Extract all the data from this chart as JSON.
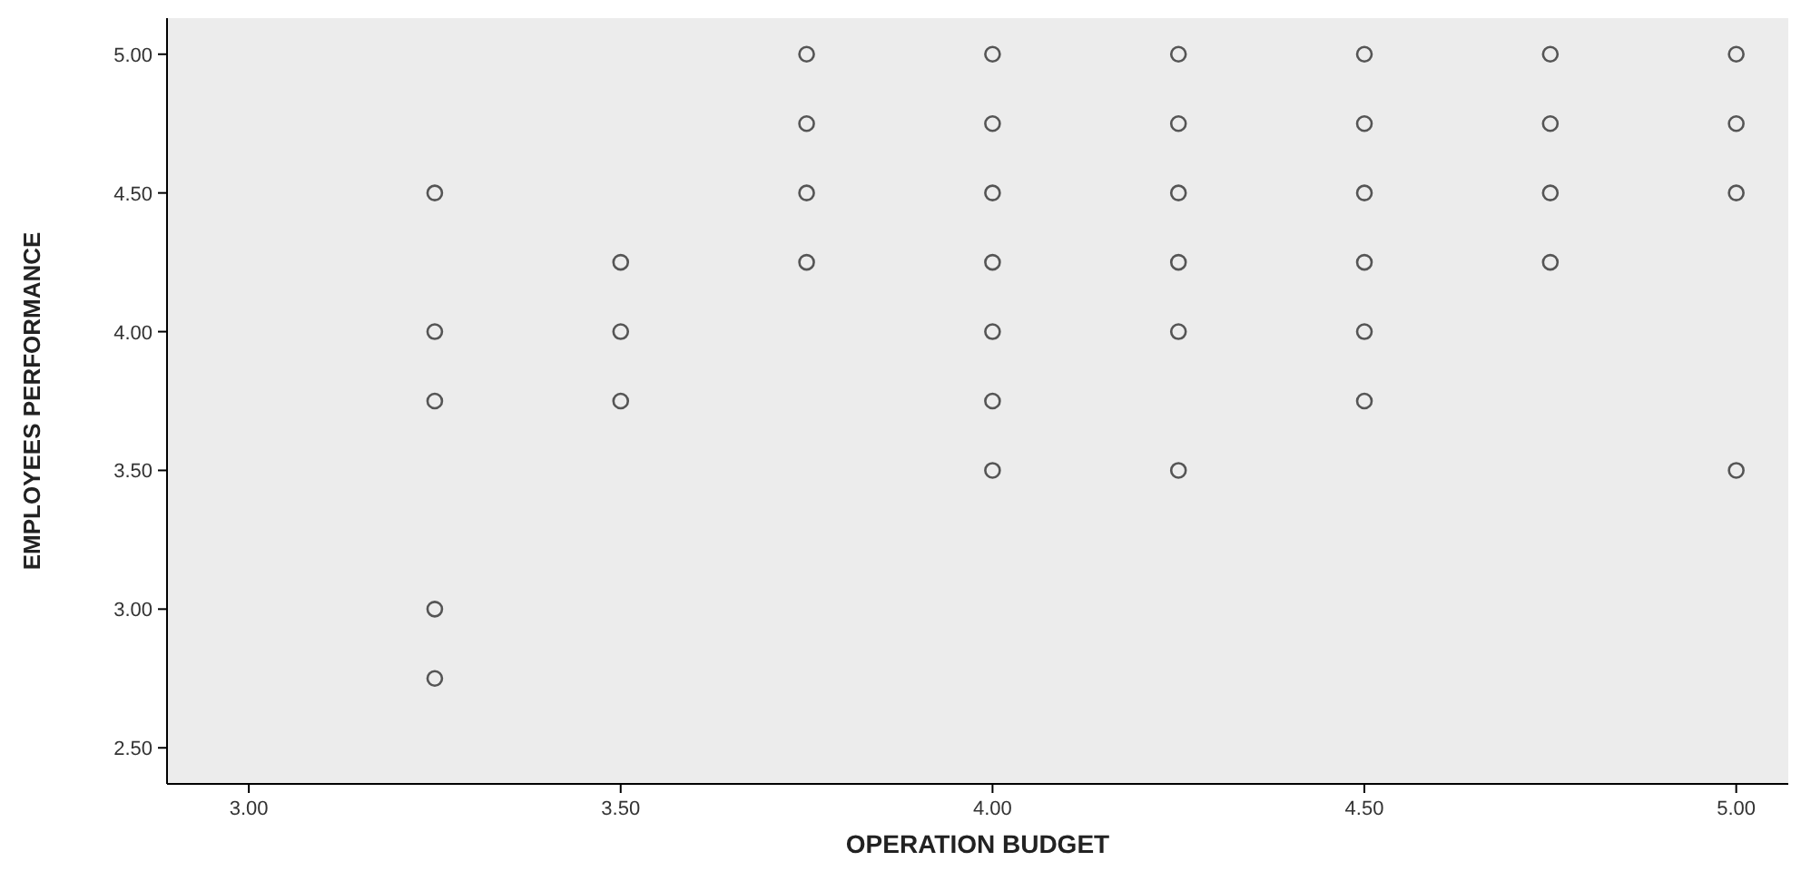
{
  "chart_data": {
    "type": "scatter",
    "xlabel": "OPERATION BUDGET",
    "ylabel": "EMPLOYEES PERFORMANCE",
    "marker": "circle",
    "grid": false,
    "xlim": [
      2.89,
      5.07
    ],
    "ylim": [
      2.37,
      5.13
    ],
    "xticks": [
      {
        "value": 3,
        "label": "3.00"
      },
      {
        "value": 3.5,
        "label": "3.50"
      },
      {
        "value": 4,
        "label": "4.00"
      },
      {
        "value": 4.5,
        "label": "4.50"
      },
      {
        "value": 5,
        "label": "5.00"
      }
    ],
    "yticks": [
      {
        "value": 2.5,
        "label": "2.50"
      },
      {
        "value": 3,
        "label": "3.00"
      },
      {
        "value": 3.5,
        "label": "3.50"
      },
      {
        "value": 4,
        "label": "4.00"
      },
      {
        "value": 4.5,
        "label": "4.50"
      },
      {
        "value": 5,
        "label": "5.00"
      }
    ],
    "series": [
      {
        "color": "#555555",
        "x": [
          3.25,
          3.25,
          3.25,
          3.25,
          3.25,
          3.5,
          3.5,
          3.5,
          3.75,
          3.75,
          3.75,
          3.75,
          4,
          4,
          4,
          4,
          4,
          4,
          4,
          4.25,
          4.25,
          4.25,
          4.25,
          4.25,
          4.25,
          4.5,
          4.5,
          4.5,
          4.5,
          4.5,
          4.5,
          4.75,
          4.75,
          4.75,
          4.75,
          5,
          5,
          5,
          5
        ],
        "values": [
          4.5,
          4,
          3.75,
          3,
          2.75,
          4.25,
          4,
          3.75,
          5,
          4.75,
          4.5,
          4.25,
          5,
          4.75,
          4.5,
          4.25,
          4,
          3.75,
          3.5,
          5,
          4.75,
          4.5,
          4.25,
          4,
          3.5,
          5,
          4.75,
          4.5,
          4.25,
          4,
          3.75,
          5,
          4.75,
          4.5,
          4.25,
          5,
          4.75,
          4.5,
          3.5
        ]
      }
    ]
  }
}
